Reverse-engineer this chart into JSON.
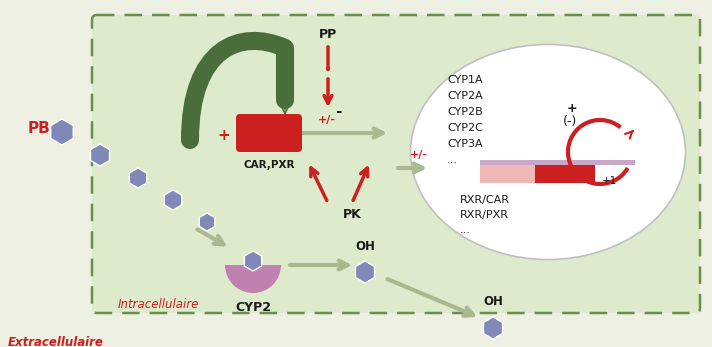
{
  "bg_color": "#eef0e4",
  "cell_bg": "#ddeacc",
  "cell_border_color": "#6a8f4a",
  "dark_green": "#4a6e3a",
  "red": "#cc2020",
  "gray_arrow": "#aab890",
  "hexagon_color": "#8088b8",
  "purple_cyp": "#c080b0",
  "text_color_red": "#cc2020",
  "text_color_black": "#1a1a1a",
  "label_PB": "PB",
  "label_CAR": "CAR,PXR",
  "label_PP": "PP",
  "label_PK": "PK",
  "label_CYP2": "CYP2",
  "label_OH1": "OH",
  "label_OH2": "OH",
  "label_intracell": "Intracellulaire",
  "label_extracell": "Extracellulaire",
  "label_plus": "+",
  "label_minus": "-",
  "label_plusminus1": "+/-",
  "label_plusminus2": "+/-",
  "label_plus_circle": "+",
  "label_minus_circle": "(-)",
  "label_plus1": "+1",
  "cyp_list": [
    "CYP1A",
    "CYP2A",
    "CYP2B",
    "CYP2C",
    "CYP3A",
    "..."
  ],
  "rxr_list": [
    "RXR/CAR",
    "RXR/PXR",
    "..."
  ],
  "figsize": [
    7.12,
    3.47
  ],
  "dpi": 100
}
